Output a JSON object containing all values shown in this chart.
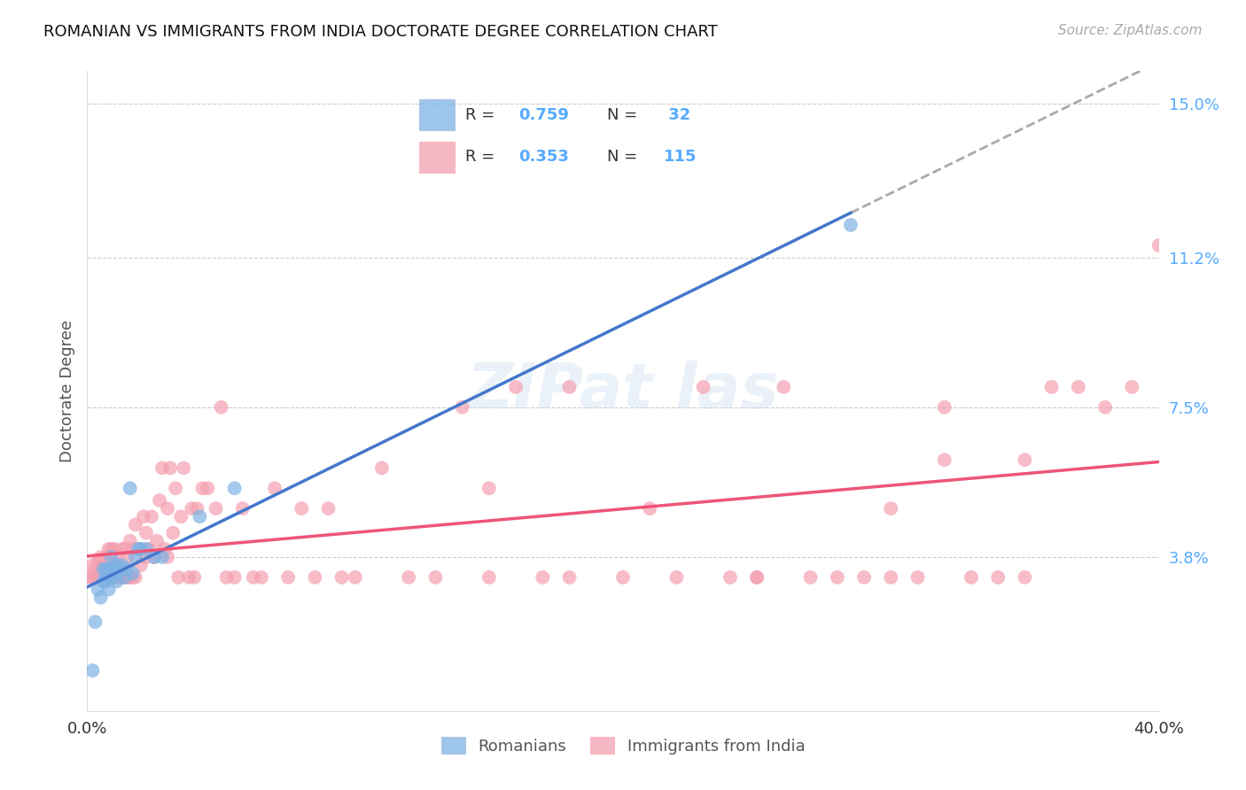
{
  "title": "ROMANIAN VS IMMIGRANTS FROM INDIA DOCTORATE DEGREE CORRELATION CHART",
  "source": "Source: ZipAtlas.com",
  "ylabel": "Doctorate Degree",
  "blue_color": "#7EB2E4",
  "pink_color": "#F4A0B0",
  "line_blue": "#4477CC",
  "line_pink": "#EE5577",
  "dashed_line_color": "#AAAAAA",
  "xmin": 0.0,
  "xmax": 0.4,
  "ymin": 0.0,
  "ymax": 0.158,
  "yticks": [
    0.0,
    0.038,
    0.075,
    0.112,
    0.15
  ],
  "ytick_labels": [
    "",
    "3.8%",
    "7.5%",
    "11.2%",
    "15.0%"
  ],
  "legend_R1": "R = 0.759",
  "legend_N1": "N =  32",
  "legend_R2": "R = 0.353",
  "legend_N2": "N = 115",
  "romanian_x": [
    0.002,
    0.003,
    0.004,
    0.005,
    0.006,
    0.006,
    0.007,
    0.007,
    0.007,
    0.008,
    0.008,
    0.009,
    0.009,
    0.01,
    0.01,
    0.011,
    0.011,
    0.012,
    0.013,
    0.014,
    0.015,
    0.016,
    0.017,
    0.018,
    0.019,
    0.02,
    0.022,
    0.025,
    0.028,
    0.042,
    0.055,
    0.285
  ],
  "romanian_y": [
    0.01,
    0.022,
    0.03,
    0.028,
    0.032,
    0.035,
    0.032,
    0.033,
    0.035,
    0.03,
    0.035,
    0.033,
    0.038,
    0.033,
    0.035,
    0.032,
    0.036,
    0.035,
    0.036,
    0.033,
    0.035,
    0.055,
    0.034,
    0.038,
    0.04,
    0.04,
    0.04,
    0.038,
    0.038,
    0.048,
    0.055,
    0.12
  ],
  "india_x": [
    0.001,
    0.002,
    0.002,
    0.003,
    0.003,
    0.004,
    0.004,
    0.005,
    0.005,
    0.005,
    0.006,
    0.006,
    0.007,
    0.007,
    0.007,
    0.008,
    0.008,
    0.008,
    0.009,
    0.009,
    0.009,
    0.01,
    0.01,
    0.01,
    0.011,
    0.011,
    0.012,
    0.012,
    0.013,
    0.013,
    0.014,
    0.014,
    0.015,
    0.015,
    0.016,
    0.016,
    0.017,
    0.017,
    0.018,
    0.018,
    0.019,
    0.02,
    0.021,
    0.022,
    0.022,
    0.023,
    0.024,
    0.025,
    0.026,
    0.027,
    0.028,
    0.029,
    0.03,
    0.03,
    0.031,
    0.032,
    0.033,
    0.034,
    0.035,
    0.036,
    0.038,
    0.039,
    0.04,
    0.041,
    0.043,
    0.045,
    0.048,
    0.05,
    0.052,
    0.055,
    0.058,
    0.062,
    0.065,
    0.07,
    0.075,
    0.08,
    0.085,
    0.09,
    0.095,
    0.1,
    0.11,
    0.12,
    0.13,
    0.14,
    0.15,
    0.16,
    0.17,
    0.18,
    0.2,
    0.21,
    0.22,
    0.23,
    0.24,
    0.25,
    0.26,
    0.27,
    0.28,
    0.29,
    0.3,
    0.31,
    0.32,
    0.33,
    0.34,
    0.35,
    0.36,
    0.37,
    0.38,
    0.39,
    0.4,
    0.25,
    0.15,
    0.18,
    0.3,
    0.32,
    0.35
  ],
  "india_y": [
    0.033,
    0.033,
    0.036,
    0.033,
    0.035,
    0.033,
    0.037,
    0.033,
    0.035,
    0.038,
    0.033,
    0.036,
    0.033,
    0.035,
    0.038,
    0.033,
    0.036,
    0.04,
    0.033,
    0.036,
    0.04,
    0.033,
    0.036,
    0.04,
    0.033,
    0.038,
    0.033,
    0.036,
    0.033,
    0.04,
    0.033,
    0.04,
    0.033,
    0.038,
    0.033,
    0.042,
    0.033,
    0.04,
    0.033,
    0.046,
    0.04,
    0.036,
    0.048,
    0.038,
    0.044,
    0.04,
    0.048,
    0.038,
    0.042,
    0.052,
    0.06,
    0.04,
    0.038,
    0.05,
    0.06,
    0.044,
    0.055,
    0.033,
    0.048,
    0.06,
    0.033,
    0.05,
    0.033,
    0.05,
    0.055,
    0.055,
    0.05,
    0.075,
    0.033,
    0.033,
    0.05,
    0.033,
    0.033,
    0.055,
    0.033,
    0.05,
    0.033,
    0.05,
    0.033,
    0.033,
    0.06,
    0.033,
    0.033,
    0.075,
    0.033,
    0.08,
    0.033,
    0.08,
    0.033,
    0.05,
    0.033,
    0.08,
    0.033,
    0.033,
    0.08,
    0.033,
    0.033,
    0.033,
    0.033,
    0.033,
    0.062,
    0.033,
    0.033,
    0.033,
    0.08,
    0.08,
    0.075,
    0.08,
    0.115,
    0.033,
    0.055,
    0.033,
    0.05,
    0.075,
    0.062
  ]
}
